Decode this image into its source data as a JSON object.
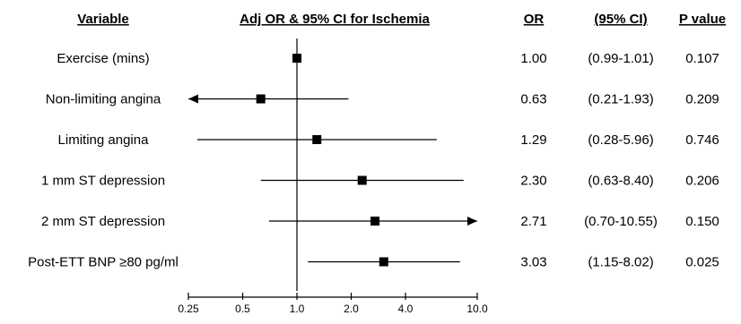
{
  "chart_data": {
    "type": "forest",
    "headers": {
      "variable": "Variable",
      "plot": "Adj OR & 95% CI for Ischemia",
      "or": "OR",
      "ci": "(95% CI)",
      "p": "P value"
    },
    "x_scale": "log",
    "xlim": [
      0.25,
      10.0
    ],
    "x_ticks": [
      0.25,
      0.5,
      1.0,
      2.0,
      4.0,
      10.0
    ],
    "x_tick_labels": [
      "0.25",
      "0.5",
      "1.0",
      "2.0",
      "4.0",
      "10.0"
    ],
    "reference_line": 1.0,
    "rows": [
      {
        "label": "Exercise (mins)",
        "or": 1.0,
        "lower": 0.99,
        "upper": 1.01,
        "or_text": "1.00",
        "ci_text": "(0.99-1.01)",
        "p_text": "0.107",
        "arrow_left": false,
        "arrow_right": false
      },
      {
        "label": "Non-limiting angina",
        "or": 0.63,
        "lower": 0.21,
        "upper": 1.93,
        "or_text": "0.63",
        "ci_text": "(0.21-1.93)",
        "p_text": "0.209",
        "arrow_left": true,
        "arrow_right": false
      },
      {
        "label": "Limiting angina",
        "or": 1.29,
        "lower": 0.28,
        "upper": 5.96,
        "or_text": "1.29",
        "ci_text": "(0.28-5.96)",
        "p_text": "0.746",
        "arrow_left": false,
        "arrow_right": false
      },
      {
        "label": "1 mm ST depression",
        "or": 2.3,
        "lower": 0.63,
        "upper": 8.4,
        "or_text": "2.30",
        "ci_text": "(0.63-8.40)",
        "p_text": "0.206",
        "arrow_left": false,
        "arrow_right": false
      },
      {
        "label": "2 mm ST depression",
        "or": 2.71,
        "lower": 0.7,
        "upper": 10.55,
        "or_text": "2.71",
        "ci_text": "(0.70-10.55)",
        "p_text": "0.150",
        "arrow_left": false,
        "arrow_right": true
      },
      {
        "label": "Post-ETT BNP ≥80 pg/ml",
        "or": 3.03,
        "lower": 1.15,
        "upper": 8.02,
        "or_text": "3.03",
        "ci_text": "(1.15-8.02)",
        "p_text": "0.025",
        "arrow_left": false,
        "arrow_right": false
      }
    ]
  }
}
